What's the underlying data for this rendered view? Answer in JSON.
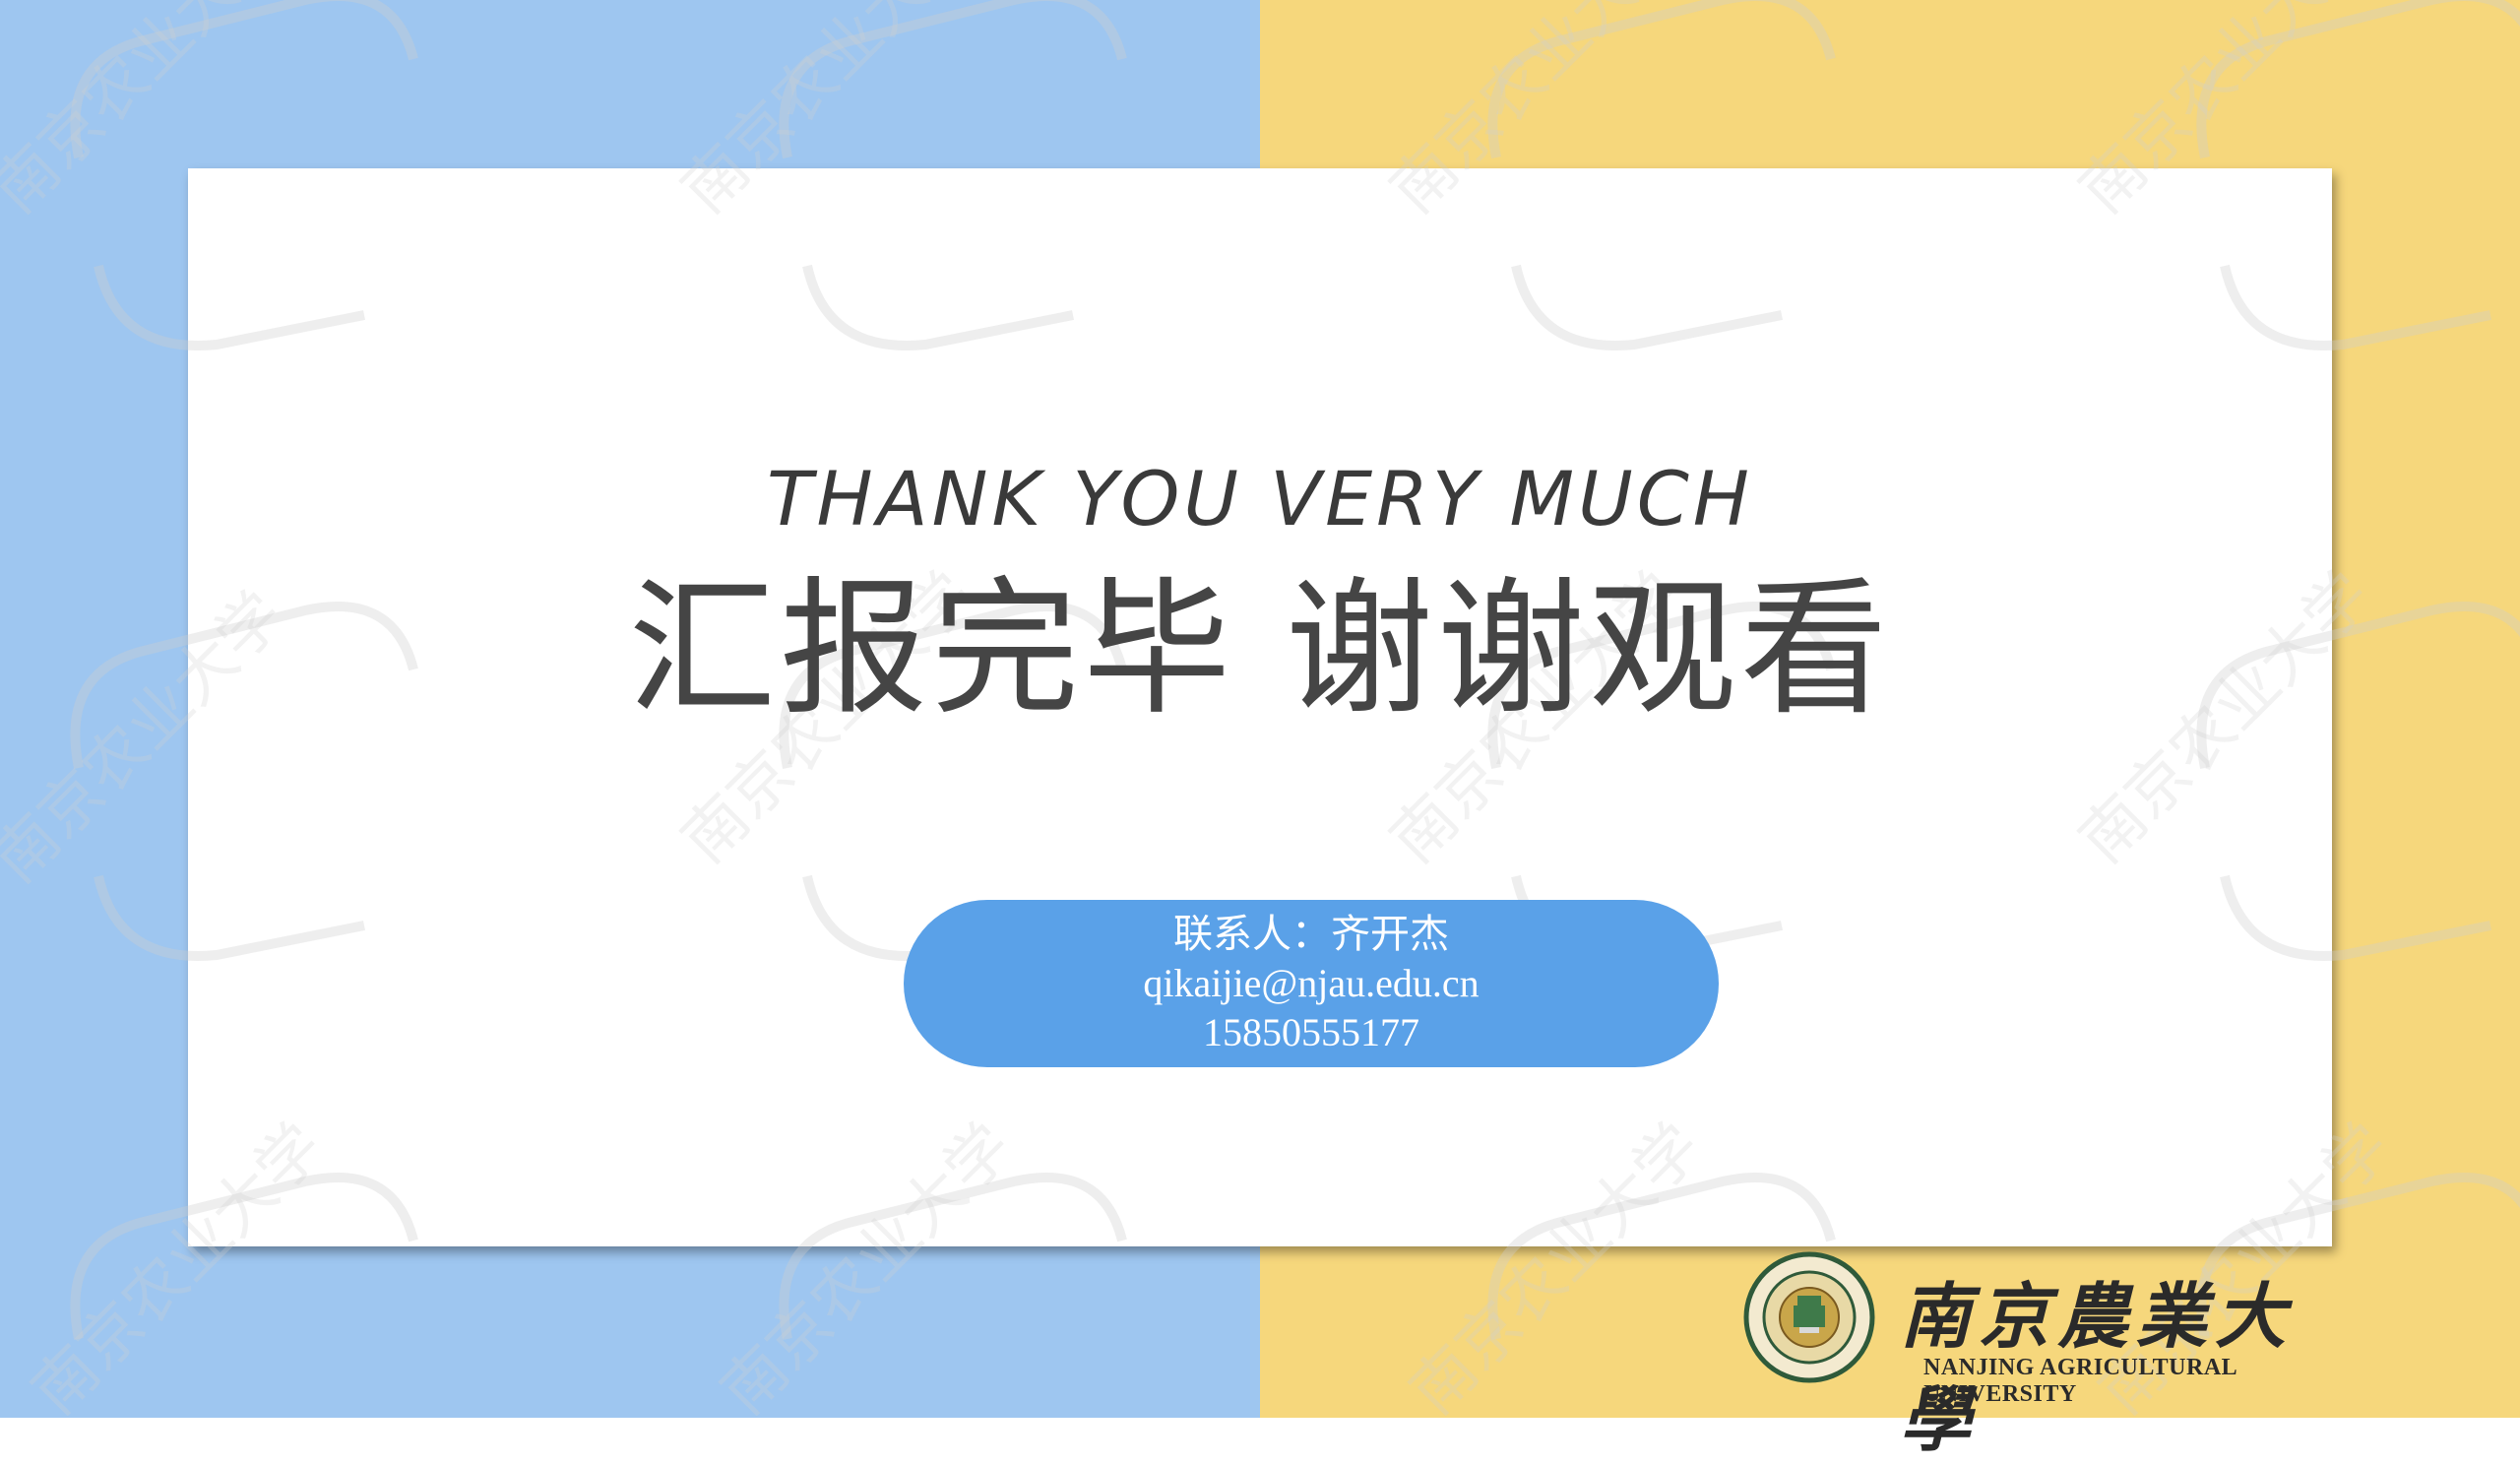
{
  "slide": {
    "title_en": "THANK YOU VERY MUCH",
    "title_cn": "汇报完毕  谢谢观看"
  },
  "contact": {
    "person": "联系人：齐开杰",
    "email": "qikaijie@njau.edu.cn",
    "phone": "15850555177"
  },
  "logo": {
    "name_cn": "南京農業大學",
    "name_en": "NANJING AGRICULTURAL UNIVERSITY"
  },
  "watermark": {
    "text": "南京农业大学"
  },
  "colors": {
    "left_panel": "#9ec6f0",
    "right_panel": "#f6d77c",
    "card": "#ffffff",
    "pill": "#5aa1e8",
    "title_text": "#454545"
  }
}
